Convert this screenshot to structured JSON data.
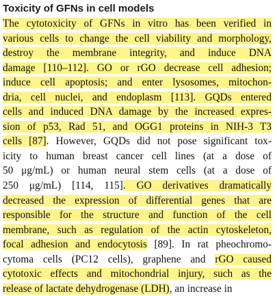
{
  "heading": "Toxicity of GFNs in cell models",
  "highlight_color": "#fef48a",
  "lines": [
    [
      {
        "t": "The cytotoxicity of GFNs in vitro has been verified in",
        "hl": true
      }
    ],
    [
      {
        "t": "various cells to change the cell viability and morphology,",
        "hl": true
      }
    ],
    [
      {
        "t": "destroy the membrane integrity, and induce DNA",
        "hl": true
      }
    ],
    [
      {
        "t": "damage [110–112]. GO or rGO decrease cell adhesion;",
        "hl": true
      }
    ],
    [
      {
        "t": "induce cell apoptosis; and enter lysosomes, mitochon-",
        "hl": true
      }
    ],
    [
      {
        "t": "dria, cell nuclei, and endoplasm [113]. GQDs entered",
        "hl": true
      }
    ],
    [
      {
        "t": "cells and induced DNA damage by the increased expres-",
        "hl": true
      }
    ],
    [
      {
        "t": "sion of p53, Rad 51, and OGG1 proteins in NIH-3 T3",
        "hl": true
      }
    ],
    [
      {
        "t": "cells [87]",
        "hl": true
      },
      {
        "t": ". However, GQDs did not pose significant tox-",
        "hl": false
      }
    ],
    [
      {
        "t": "icity to human breast cancer cell lines (at a dose of",
        "hl": false
      }
    ],
    [
      {
        "t": "50 μg/mL) or human neural stem cells (at a dose of",
        "hl": false
      }
    ],
    [
      {
        "t": "250 μg/mL) [114, 115]",
        "hl": false
      },
      {
        "t": ". GO derivatives dramatically",
        "hl": true
      }
    ],
    [
      {
        "t": "decreased the expression of differential genes that are",
        "hl": true
      }
    ],
    [
      {
        "t": "responsible for the structure and function of the cell",
        "hl": true
      }
    ],
    [
      {
        "t": "membrane, such as regulation of the actin cytoskeleton,",
        "hl": true
      }
    ],
    [
      {
        "t": "focal adhesion and endocytosis",
        "hl": true
      },
      {
        "t": " [89]. In rat pheochromo-",
        "hl": false
      }
    ],
    [
      {
        "t": "cytoma cells (PC12 cells), graphene and ",
        "hl": false
      },
      {
        "t": "rGO caused",
        "hl": true
      }
    ],
    [
      {
        "t": "cytotoxic effects and mitochondrial injury, such as the",
        "hl": true
      }
    ],
    [
      {
        "t": "release of lactate dehydrogenase (LDH)",
        "hl": true
      },
      {
        "t": ", an increase in",
        "hl": false
      }
    ]
  ]
}
